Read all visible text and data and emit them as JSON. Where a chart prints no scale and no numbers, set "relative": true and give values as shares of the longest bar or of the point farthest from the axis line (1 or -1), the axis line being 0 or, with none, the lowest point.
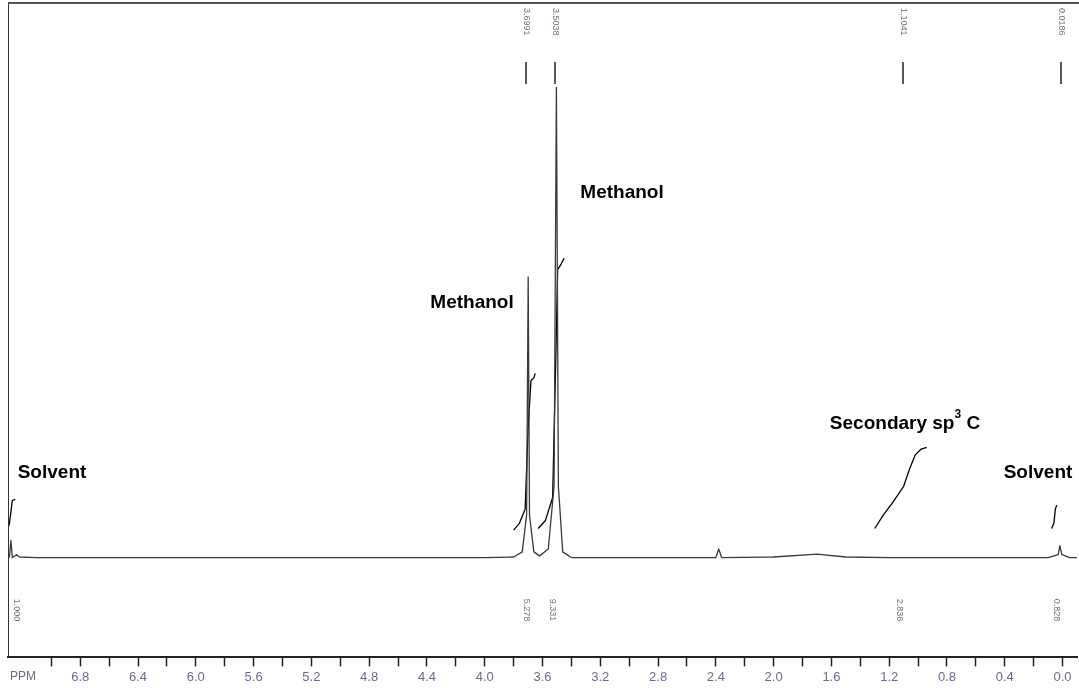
{
  "chart_data": {
    "type": "line",
    "relative": true,
    "xlabel": "PPM",
    "xlim": [
      7.3,
      -0.1
    ],
    "xticks": [
      {
        "value": 7.0,
        "label": null
      },
      6.8,
      {
        "value": 6.6,
        "label": null
      },
      6.4,
      {
        "value": 6.2,
        "label": null
      },
      {
        "value": 6.0,
        "label": "6.0"
      },
      {
        "value": 5.8,
        "label": null
      },
      5.6,
      {
        "value": 5.4,
        "label": null
      },
      5.2,
      {
        "value": 5.0,
        "label": null
      },
      4.8,
      {
        "value": 4.6,
        "label": null
      },
      4.4,
      {
        "value": 4.2,
        "label": null
      },
      {
        "value": 4.0,
        "label": "4.0"
      },
      {
        "value": 3.8,
        "label": null
      },
      3.6,
      {
        "value": 3.4,
        "label": null
      },
      3.2,
      {
        "value": 3.0,
        "label": null
      },
      2.8,
      {
        "value": 2.6,
        "label": null
      },
      2.4,
      {
        "value": 2.2,
        "label": null
      },
      {
        "value": 2.0,
        "label": "2.0"
      },
      {
        "value": 1.8,
        "label": null
      },
      1.6,
      {
        "value": 1.4,
        "label": null
      },
      1.2,
      {
        "value": 1.0,
        "label": null
      },
      0.8,
      {
        "value": 0.6,
        "label": null
      },
      0.4,
      {
        "value": 0.2,
        "label": null
      },
      {
        "value": 0,
        "label": "0.0"
      }
    ],
    "grid": false,
    "legend": false,
    "marker": "none",
    "line_style": "solid",
    "series": [
      {
        "color": "#3a3a3a",
        "x": [
          7.3,
          7.29,
          7.28,
          7.27,
          7.24,
          7.22,
          7.1,
          6.5,
          5.5,
          4.5,
          4.0,
          3.8,
          3.74,
          3.71,
          3.6991,
          3.69,
          3.66,
          3.62,
          3.56,
          3.52,
          3.5038,
          3.49,
          3.46,
          3.4,
          2.8,
          2.4,
          2.38,
          2.36,
          2.0,
          1.7,
          1.5,
          1.2,
          0.6,
          0.1,
          0.03,
          0.0186,
          0.005,
          -0.05,
          -0.1
        ],
        "values": [
          0.175,
          0.176,
          0.205,
          0.175,
          0.18,
          0.176,
          0.175,
          0.175,
          0.175,
          0.175,
          0.175,
          0.176,
          0.185,
          0.25,
          0.667,
          0.25,
          0.185,
          0.178,
          0.19,
          0.3,
          1.0,
          0.3,
          0.185,
          0.175,
          0.175,
          0.175,
          0.19,
          0.175,
          0.176,
          0.181,
          0.176,
          0.175,
          0.175,
          0.175,
          0.18,
          0.196,
          0.18,
          0.175,
          0.175
        ]
      },
      {
        "color": "#000000",
        "x": [
          7.3,
          7.29,
          7.28,
          7.27,
          7.25
        ],
        "values": [
          0.226,
          0.235,
          0.255,
          0.275,
          0.277
        ]
      },
      {
        "color": "#000000",
        "x": [
          3.8,
          3.76,
          3.72,
          3.7,
          3.68,
          3.66,
          3.65
        ],
        "values": [
          0.223,
          0.235,
          0.26,
          0.4,
          0.485,
          0.49,
          0.498
        ]
      },
      {
        "color": "#000000",
        "x": [
          3.63,
          3.58,
          3.53,
          3.51,
          3.495,
          3.47,
          3.45
        ],
        "values": [
          0.226,
          0.24,
          0.28,
          0.5,
          0.68,
          0.69,
          0.7
        ]
      },
      {
        "color": "#000000",
        "x": [
          1.3,
          1.24,
          1.18,
          1.14,
          1.1,
          1.06,
          1.02,
          0.98,
          0.94
        ],
        "values": [
          0.226,
          0.25,
          0.27,
          0.285,
          0.3,
          0.33,
          0.355,
          0.365,
          0.368
        ]
      },
      {
        "color": "#000000",
        "x": [
          0.076,
          0.06,
          0.05,
          0.04
        ],
        "values": [
          0.226,
          0.235,
          0.26,
          0.267
        ]
      }
    ],
    "annotations": [
      "3.6991",
      "3.5038",
      "1.1041",
      "0.0186",
      "1.000",
      "5.278",
      "9.331",
      "2.836",
      "0.828",
      "Solvent",
      "Methanol",
      "Methanol",
      "Secondary sp$^{3}$ C",
      "Solvent"
    ]
  }
}
